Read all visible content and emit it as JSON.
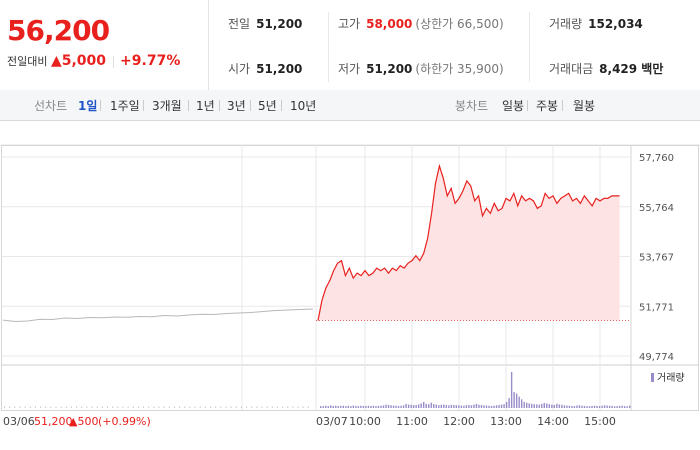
{
  "summary": {
    "price": "56,200",
    "change_label": "전일대비",
    "change_value": "▲5,000",
    "change_percent": "+9.77%"
  },
  "stats": {
    "prev_close_label": "전일",
    "prev_close": "51,200",
    "high_label": "고가",
    "high": "58,000",
    "upper_limit": "(상한가 66,500)",
    "volume_label": "거래량",
    "volume": "152,034",
    "open_label": "시가",
    "open": "51,200",
    "low_label": "저가",
    "low": "51,200",
    "lower_limit": "(하한가 35,900)",
    "value_label": "거래대금",
    "value": "8,429 백만"
  },
  "tabs": {
    "line_label": "선차트",
    "line_items": [
      "1일",
      "1주일",
      "3개월",
      "1년",
      "3년",
      "5년",
      "10년"
    ],
    "line_active": "1일",
    "candle_label": "봉차트",
    "candle_items": [
      "일봉",
      "주봉",
      "월봉"
    ]
  },
  "colors": {
    "up": "#e8211e",
    "fill": "#fde3e3",
    "prev": "#b8b8b8",
    "volume": "#9a8cc9",
    "grid": "#e8e8e8"
  },
  "chart_data": {
    "type": "line",
    "series": [
      {
        "name": "03/06",
        "values": [
          51216,
          51160,
          51180,
          51250,
          51240,
          51300,
          51280,
          51320,
          51310,
          51340,
          51330,
          51360,
          51350,
          51400,
          51380,
          51420,
          51450,
          51440,
          51480,
          51500,
          51520,
          51560,
          51600,
          51620,
          51640,
          51660
        ]
      },
      {
        "name": "03/07",
        "x": [
          "09:00",
          "09:05",
          "09:10",
          "09:15",
          "09:20",
          "09:25",
          "09:30",
          "09:35",
          "09:40",
          "09:45",
          "09:50",
          "09:55",
          "10:00",
          "10:05",
          "10:10",
          "10:15",
          "10:20",
          "10:25",
          "10:30",
          "10:35",
          "10:40",
          "10:45",
          "10:50",
          "10:55",
          "11:00",
          "11:05",
          "11:10",
          "11:15",
          "11:20",
          "11:25",
          "11:30",
          "11:35",
          "11:40",
          "11:45",
          "11:50",
          "11:55",
          "12:00",
          "12:05",
          "12:10",
          "12:15",
          "12:20",
          "12:25",
          "12:30",
          "12:35",
          "12:40",
          "12:45",
          "12:50",
          "12:55",
          "13:00",
          "13:05",
          "13:10",
          "13:15",
          "13:20",
          "13:25",
          "13:30",
          "13:35",
          "13:40",
          "13:45",
          "13:50",
          "13:55",
          "14:00",
          "14:05",
          "14:10",
          "14:15",
          "14:20",
          "14:25",
          "14:30",
          "14:35",
          "14:40",
          "14:45",
          "14:50",
          "14:55",
          "15:00",
          "15:05",
          "15:10",
          "15:15",
          "15:20",
          "15:25"
        ],
        "values": [
          51200,
          52000,
          52500,
          52800,
          53200,
          53500,
          53600,
          53000,
          53300,
          52900,
          53100,
          53000,
          53200,
          53000,
          53100,
          53300,
          53200,
          53300,
          53100,
          53300,
          53200,
          53400,
          53300,
          53500,
          53600,
          53800,
          53600,
          53900,
          54500,
          55500,
          56700,
          57400,
          56900,
          56200,
          56500,
          55900,
          56100,
          56400,
          56800,
          56600,
          56000,
          56200,
          55400,
          55700,
          55500,
          55900,
          55600,
          55700,
          56100,
          56000,
          56300,
          55800,
          56200,
          56000,
          56100,
          56000,
          55700,
          55800,
          56300,
          56100,
          56200,
          55900,
          56100,
          56200,
          56300,
          56000,
          56100,
          55900,
          56200,
          56000,
          55800,
          56100,
          56000,
          56100,
          56100,
          56200,
          56200,
          56200
        ]
      }
    ],
    "volume": [
      50,
      50,
      60,
      50,
      70,
      55,
      60,
      50,
      55,
      60,
      50,
      60,
      50,
      65,
      55,
      50,
      60,
      55,
      50,
      60,
      55,
      60,
      50,
      55,
      60,
      70,
      90,
      80,
      70,
      65,
      60,
      55,
      60,
      70,
      110,
      90,
      85,
      75,
      80,
      95,
      120,
      160,
      110,
      100,
      140,
      105,
      90,
      75,
      85,
      90,
      80,
      70,
      85,
      80,
      75,
      70,
      65,
      60,
      75,
      80,
      70,
      90,
      110,
      85,
      80,
      70,
      65,
      60,
      55,
      60,
      70,
      80,
      90,
      100,
      160,
      260,
      950,
      420,
      380,
      300,
      230,
      160,
      140,
      120,
      110,
      100,
      95,
      90,
      110,
      130,
      120,
      100,
      90,
      80,
      110,
      95,
      85,
      70,
      65,
      60,
      55,
      50,
      65,
      70,
      60,
      55,
      50,
      45,
      55,
      60,
      55,
      50,
      60,
      70,
      65,
      60,
      55,
      45,
      50,
      55,
      60,
      50,
      45,
      60
    ],
    "xticks_prev": [
      "03/06"
    ],
    "xticks": [
      "03/07",
      "10:00",
      "11:00",
      "12:00",
      "13:00",
      "14:00",
      "15:00"
    ],
    "yticks": [
      "57,760",
      "55,764",
      "53,767",
      "51,771",
      "49,774"
    ],
    "yrange": [
      49774,
      57760
    ],
    "prev_close": 51200,
    "volume_label": "거래량",
    "footer": {
      "date": "03/06",
      "price": "51,200",
      "change": "▲500",
      "percent": "(+0.99%)"
    }
  }
}
